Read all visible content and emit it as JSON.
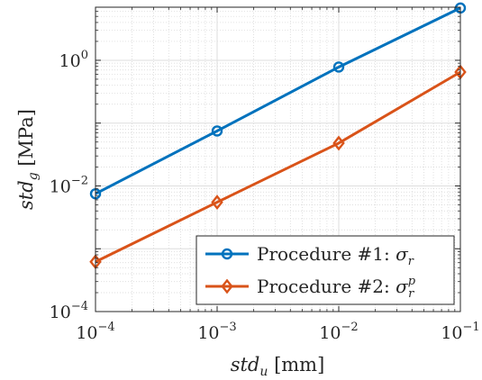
{
  "chart_data": {
    "type": "line",
    "scale": {
      "x": "log",
      "y": "log"
    },
    "xlim": [
      0.0001,
      0.1
    ],
    "ylim": [
      0.0001,
      7
    ],
    "grid": true,
    "minor_grid": true,
    "legend_placement": "bottom-right",
    "xlabel": {
      "italic": "std",
      "sub": "u",
      "unit": "[mm]"
    },
    "ylabel": {
      "italic": "std",
      "sub": "g",
      "unit": "[MPa]"
    },
    "x_ticks": [
      {
        "value": 0.0001,
        "base": "10",
        "exp": "−4"
      },
      {
        "value": 0.001,
        "base": "10",
        "exp": "−3"
      },
      {
        "value": 0.01,
        "base": "10",
        "exp": "−2"
      },
      {
        "value": 0.1,
        "base": "10",
        "exp": "−1"
      }
    ],
    "y_ticks": [
      {
        "value": 0.0001,
        "base": "10",
        "exp": "−4"
      },
      {
        "value": 0.01,
        "base": "10",
        "exp": "−2"
      },
      {
        "value": 1,
        "base": "10",
        "exp": "0"
      }
    ],
    "series": [
      {
        "name": "Procedure #1: σ_r",
        "legend": {
          "text": "Procedure #1: ",
          "sym": "σ",
          "sub": "r",
          "sup": ""
        },
        "color": "#0072BD",
        "marker": "circle",
        "x": [
          0.0001,
          0.001,
          0.01,
          0.1
        ],
        "y": [
          0.0075,
          0.075,
          0.78,
          6.8
        ]
      },
      {
        "name": "Procedure #2: σ_r^p",
        "legend": {
          "text": "Procedure #2: ",
          "sym": "σ",
          "sub": "r",
          "sup": "p"
        },
        "color": "#D95319",
        "marker": "diamond",
        "x": [
          0.0001,
          0.001,
          0.01,
          0.1
        ],
        "y": [
          0.00062,
          0.0055,
          0.048,
          0.65
        ]
      }
    ]
  }
}
